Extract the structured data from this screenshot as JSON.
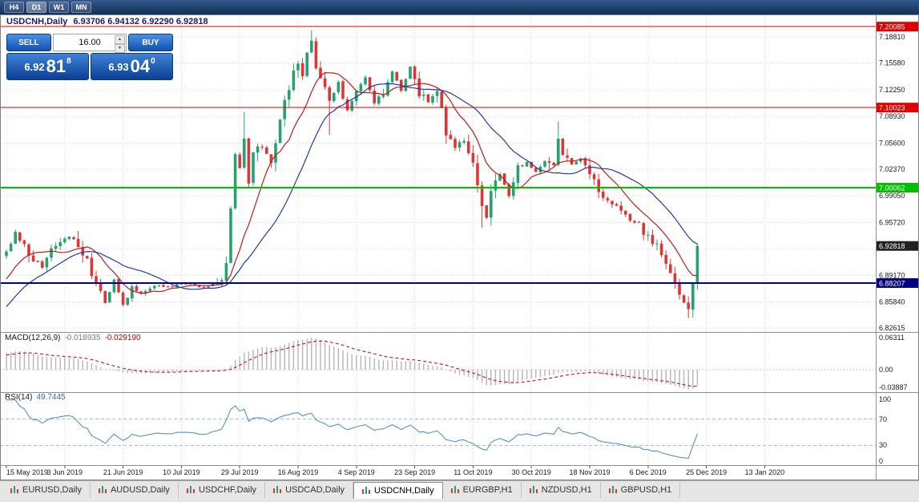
{
  "topbar": {
    "timeframes": [
      "H4",
      "D1",
      "W1",
      "MN"
    ],
    "active": "D1"
  },
  "window": {
    "title_symbol": "USDCNH,Daily",
    "title_ohlc": "6.93706 6.94132 6.92290 6.92818"
  },
  "trade_panel": {
    "sell_label": "SELL",
    "buy_label": "BUY",
    "volume": "16.00",
    "sell_price": {
      "base": "6.92",
      "pips": "81",
      "pipette": "8"
    },
    "buy_price": {
      "base": "6.93",
      "pips": "04",
      "pipette": "0"
    }
  },
  "icons": {
    "spinner_up": "▲",
    "spinner_down": "▼",
    "tab_icon": "chart-icon"
  },
  "price_scale": {
    "ticks": [
      {
        "price": 7.1881,
        "label": "7.18810"
      },
      {
        "price": 7.1558,
        "label": "7.15580"
      },
      {
        "price": 7.1225,
        "label": "7.12250"
      },
      {
        "price": 7.0893,
        "label": "7.08930"
      },
      {
        "price": 7.056,
        "label": "7.05600"
      },
      {
        "price": 7.0237,
        "label": "7.02370"
      },
      {
        "price": 6.9905,
        "label": "6.99050"
      },
      {
        "price": 6.9572,
        "label": "6.95720"
      },
      {
        "price": 6.9239,
        "label": ""
      },
      {
        "price": 6.8917,
        "label": "6.89170"
      },
      {
        "price": 6.8584,
        "label": "6.85840"
      },
      {
        "price": 6.82615,
        "label": "6.82615"
      }
    ],
    "badges": [
      {
        "price": 7.20085,
        "label": "7.20085",
        "color": "#e00000",
        "line": true,
        "line_width": 1
      },
      {
        "price": 7.10023,
        "label": "7.10023",
        "color": "#e00000",
        "line": true,
        "line_width": 1
      },
      {
        "price": 7.00062,
        "label": "7.00062",
        "color": "#00c000",
        "line": true,
        "line_width": 2
      },
      {
        "price": 6.92818,
        "label": "6.92818",
        "color": "#222222",
        "line": false,
        "line_width": 0
      },
      {
        "price": 6.88207,
        "label": "6.88207",
        "color": "#000080",
        "line": true,
        "line_width": 2
      }
    ]
  },
  "macd": {
    "label": "MACD(12,26,9)",
    "value_main": "-0.018935",
    "value_signal": "-0.029190",
    "scale": [
      "0.06311",
      "0.00",
      "-0.03887"
    ]
  },
  "rsi": {
    "label": "RSI(14)",
    "value": "49.7445",
    "scale": [
      "100",
      "70",
      "30",
      "0"
    ],
    "levels": [
      70,
      30
    ]
  },
  "time_axis": {
    "labels": [
      "15 May 2019",
      "3 Jun 2019",
      "21 Jun 2019",
      "10 Jul 2019",
      "29 Jul 2019",
      "16 Aug 2019",
      "4 Sep 2019",
      "23 Sep 2019",
      "11 Oct 2019",
      "30 Oct 2019",
      "18 Nov 2019",
      "6 Dec 2019",
      "25 Dec 2019",
      "13 Jan 2020"
    ]
  },
  "tabs": [
    {
      "label": "EURUSD,Daily",
      "active": false
    },
    {
      "label": "AUDUSD,Daily",
      "active": false
    },
    {
      "label": "USDCHF,Daily",
      "active": false
    },
    {
      "label": "USDCAD,Daily",
      "active": false
    },
    {
      "label": "USDCNH,Daily",
      "active": true
    },
    {
      "label": "EURGBP,H1",
      "active": false
    },
    {
      "label": "NZDUSD,H1",
      "active": false
    },
    {
      "label": "GBPUSD,H1",
      "active": false
    }
  ],
  "chart_data": {
    "type": "candlestick",
    "symbol": "USDCNH",
    "timeframe": "Daily",
    "candles": 155,
    "candles_per_time_tick": 13,
    "last_close": 6.92818,
    "prehistory": {
      "count": 30,
      "from": 6.745,
      "to": 6.905
    },
    "anchors": [
      [
        0,
        6.92
      ],
      [
        2,
        6.947
      ],
      [
        5,
        6.916
      ],
      [
        8,
        6.903
      ],
      [
        11,
        6.928
      ],
      [
        14,
        6.94
      ],
      [
        17,
        6.923
      ],
      [
        20,
        6.88
      ],
      [
        22,
        6.858
      ],
      [
        24,
        6.885
      ],
      [
        26,
        6.853
      ],
      [
        28,
        6.876
      ],
      [
        30,
        6.868
      ],
      [
        33,
        6.88
      ],
      [
        36,
        6.877
      ],
      [
        40,
        6.882
      ],
      [
        44,
        6.876
      ],
      [
        48,
        6.883
      ],
      [
        49,
        6.905
      ],
      [
        50,
        6.968
      ],
      [
        51,
        7.048
      ],
      [
        52,
        7.028
      ],
      [
        53,
        7.062
      ],
      [
        54,
        7.005
      ],
      [
        55,
        7.045
      ],
      [
        57,
        7.053
      ],
      [
        59,
        7.03
      ],
      [
        61,
        7.088
      ],
      [
        63,
        7.125
      ],
      [
        65,
        7.158
      ],
      [
        66,
        7.145
      ],
      [
        67,
        7.168
      ],
      [
        68,
        7.185
      ],
      [
        69,
        7.155
      ],
      [
        70,
        7.138
      ],
      [
        72,
        7.108
      ],
      [
        74,
        7.13
      ],
      [
        76,
        7.098
      ],
      [
        78,
        7.118
      ],
      [
        80,
        7.14
      ],
      [
        82,
        7.108
      ],
      [
        84,
        7.122
      ],
      [
        86,
        7.146
      ],
      [
        88,
        7.12
      ],
      [
        90,
        7.15
      ],
      [
        92,
        7.118
      ],
      [
        94,
        7.108
      ],
      [
        96,
        7.12
      ],
      [
        98,
        7.072
      ],
      [
        100,
        7.048
      ],
      [
        102,
        7.062
      ],
      [
        104,
        7.03
      ],
      [
        106,
        6.978
      ],
      [
        107,
        6.962
      ],
      [
        108,
        7.0
      ],
      [
        110,
        7.016
      ],
      [
        112,
        6.992
      ],
      [
        114,
        7.022
      ],
      [
        116,
        7.032
      ],
      [
        118,
        7.02
      ],
      [
        120,
        7.036
      ],
      [
        122,
        7.03
      ],
      [
        123,
        7.062
      ],
      [
        124,
        7.042
      ],
      [
        126,
        7.03
      ],
      [
        128,
        7.036
      ],
      [
        130,
        7.022
      ],
      [
        132,
        6.992
      ],
      [
        134,
        6.986
      ],
      [
        136,
        6.975
      ],
      [
        138,
        6.966
      ],
      [
        140,
        6.96
      ],
      [
        142,
        6.946
      ],
      [
        144,
        6.932
      ],
      [
        146,
        6.92
      ],
      [
        148,
        6.892
      ],
      [
        150,
        6.868
      ],
      [
        151,
        6.856
      ],
      [
        152,
        6.846
      ],
      [
        153,
        6.885
      ],
      [
        154,
        6.92818
      ]
    ],
    "forced_highs": {
      "53": 7.095,
      "68": 7.1965,
      "123": 7.083
    },
    "forced_lows": {
      "72": 7.066,
      "106": 6.951,
      "152": 6.8385
    },
    "indicators": [
      {
        "name": "SMA",
        "period": 10,
        "color": "#c11b17"
      },
      {
        "name": "SMA",
        "period": 22,
        "color": "#1f3ba6"
      },
      {
        "name": "MACD",
        "params": [
          12,
          26,
          9
        ]
      },
      {
        "name": "RSI",
        "params": [
          14
        ]
      }
    ],
    "colors": {
      "up": "#26a172",
      "down": "#e03535",
      "macd_hist": "#b5b5b5",
      "macd_signal": "#c00000",
      "rsi_line": "#4a86c8",
      "grid": "#d8d8d8"
    }
  }
}
